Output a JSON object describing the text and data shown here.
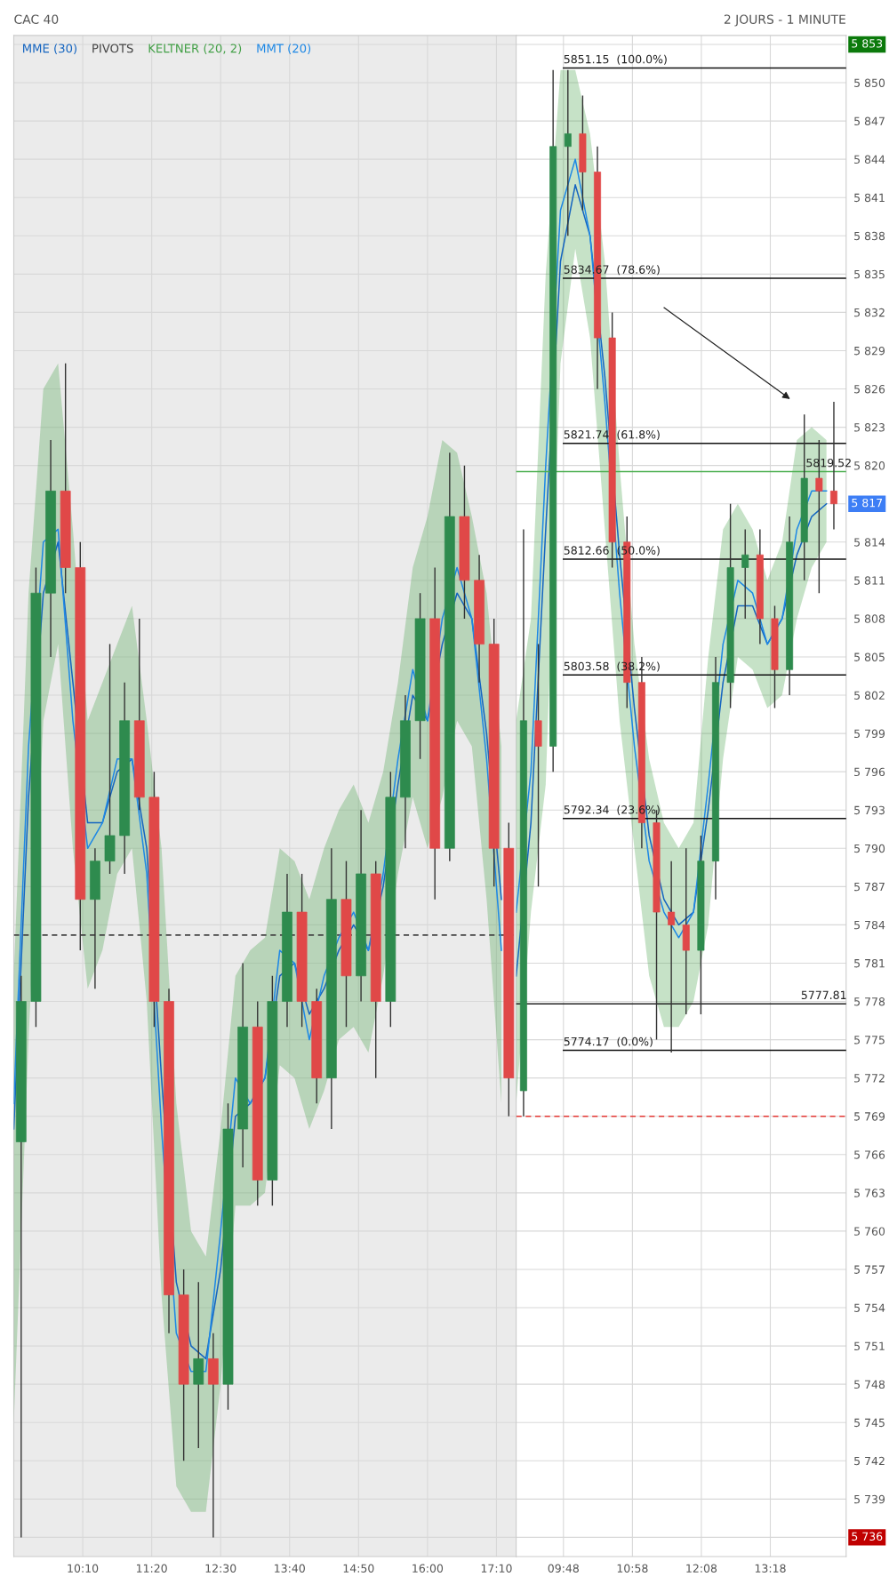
{
  "chart_data": [
    {
      "type": "candlestick",
      "title": "CAC 40",
      "xlim": [
        9,
        17.5
      ],
      "ylim": [
        5734.5,
        5853.7
      ],
      "tick_labels": "x",
      "xticks": [
        {
          "value": 10.1667,
          "label": "10:10"
        },
        {
          "value": 11.3333,
          "label": "11:20"
        },
        {
          "value": 12.5,
          "label": "12:30"
        },
        {
          "value": 13.6667,
          "label": "13:40"
        },
        {
          "value": 14.8333,
          "label": "14:50"
        },
        {
          "value": 16,
          "label": "16:00"
        },
        {
          "value": 17.1667,
          "label": "17:10"
        }
      ],
      "yticks": [
        5736,
        5739,
        5742,
        5745,
        5748,
        5751,
        5754,
        5757,
        5760,
        5763,
        5766,
        5769,
        5772,
        5775,
        5778,
        5781,
        5784,
        5787,
        5790,
        5793,
        5796,
        5799,
        5802,
        5805,
        5808,
        5811,
        5814,
        5817,
        5820,
        5823,
        5826,
        5829,
        5832,
        5835,
        5838,
        5841,
        5844,
        5847,
        5850,
        5853
      ],
      "grid": true,
      "legend": "top left",
      "bands": [
        {
          "axis": "x",
          "from": 9,
          "to": 17.5,
          "color": "#ebebeb"
        }
      ],
      "series": [
        {
          "x": [
            9.125,
            9.375,
            9.625,
            9.875,
            10.125,
            10.375,
            10.625,
            10.875,
            11.125,
            11.375,
            11.625,
            11.875,
            12.125,
            12.375,
            12.625,
            12.875,
            13.125,
            13.375,
            13.625,
            13.875,
            14.125,
            14.375,
            14.625,
            14.875,
            15.125,
            15.375,
            15.625,
            15.875,
            16.125,
            16.375,
            16.625,
            16.875,
            17.125,
            17.375
          ],
          "ohlc": [
            [
              5767,
              5780,
              5736,
              5778
            ],
            [
              5778,
              5812,
              5776,
              5810
            ],
            [
              5810,
              5822,
              5805,
              5818
            ],
            [
              5818,
              5828,
              5810,
              5812
            ],
            [
              5812,
              5814,
              5782,
              5786
            ],
            [
              5786,
              5790,
              5779,
              5789
            ],
            [
              5789,
              5806,
              5788,
              5791
            ],
            [
              5791,
              5803,
              5788,
              5800
            ],
            [
              5800,
              5808,
              5793,
              5794
            ],
            [
              5794,
              5796,
              5776,
              5778
            ],
            [
              5778,
              5779,
              5752,
              5755
            ],
            [
              5755,
              5757,
              5742,
              5748
            ],
            [
              5748,
              5756,
              5743,
              5750
            ],
            [
              5750,
              5752,
              5736,
              5748
            ],
            [
              5748,
              5770,
              5746,
              5768
            ],
            [
              5768,
              5781,
              5765,
              5776
            ],
            [
              5776,
              5778,
              5762,
              5764
            ],
            [
              5764,
              5780,
              5762,
              5778
            ],
            [
              5778,
              5788,
              5776,
              5785
            ],
            [
              5785,
              5788,
              5776,
              5778
            ],
            [
              5778,
              5779,
              5770,
              5772
            ],
            [
              5772,
              5790,
              5768,
              5786
            ],
            [
              5786,
              5789,
              5776,
              5780
            ],
            [
              5780,
              5793,
              5778,
              5788
            ],
            [
              5788,
              5789,
              5772,
              5778
            ],
            [
              5778,
              5796,
              5776,
              5794
            ],
            [
              5794,
              5802,
              5790,
              5800
            ],
            [
              5800,
              5810,
              5797,
              5808
            ],
            [
              5808,
              5812,
              5786,
              5790
            ],
            [
              5790,
              5821,
              5789,
              5816
            ],
            [
              5816,
              5820,
              5808,
              5811
            ],
            [
              5811,
              5813,
              5803,
              5806
            ],
            [
              5806,
              5808,
              5787,
              5790
            ],
            [
              5790,
              5792,
              5769,
              5772
            ]
          ],
          "colors": [
            "#2e8b4e",
            "#2e8b4e",
            "#2e8b4e",
            "#e04848",
            "#e04848",
            "#2e8b4e",
            "#2e8b4e",
            "#2e8b4e",
            "#e04848",
            "#e04848",
            "#e04848",
            "#e04848",
            "#2e8b4e",
            "#e04848",
            "#2e8b4e",
            "#2e8b4e",
            "#e04848",
            "#2e8b4e",
            "#2e8b4e",
            "#e04848",
            "#e04848",
            "#2e8b4e",
            "#e04848",
            "#2e8b4e",
            "#e04848",
            "#2e8b4e",
            "#2e8b4e",
            "#2e8b4e",
            "#e04848",
            "#2e8b4e",
            "#e04848",
            "#e04848",
            "#e04848",
            "#e04848"
          ]
        },
        {
          "type": "line",
          "name": "MME (30)",
          "color": "#1565c0",
          "x": [
            9.0,
            9.25,
            9.5,
            9.75,
            10.0,
            10.25,
            10.5,
            10.75,
            11.0,
            11.25,
            11.5,
            11.75,
            12.0,
            12.25,
            12.5,
            12.75,
            13.0,
            13.25,
            13.5,
            13.75,
            14.0,
            14.25,
            14.5,
            14.75,
            15.0,
            15.25,
            15.5,
            15.75,
            16.0,
            16.25,
            16.5,
            16.75,
            17.0,
            17.25
          ],
          "values": [
            5768,
            5794,
            5810,
            5814,
            5803,
            5792,
            5792,
            5796,
            5797,
            5790,
            5772,
            5756,
            5751,
            5750,
            5757,
            5769,
            5770,
            5772,
            5780,
            5781,
            5777,
            5779,
            5782,
            5784,
            5782,
            5787,
            5795,
            5802,
            5800,
            5806,
            5810,
            5808,
            5799,
            5786
          ]
        },
        {
          "type": "line",
          "name": "PIVOTS",
          "color": "#444444",
          "line_style": "dashed",
          "x": [
            9,
            17.5
          ],
          "values": [
            5783.2,
            5783.2
          ]
        },
        {
          "type": "line",
          "name": "KELTNER (20, 2)",
          "color": "#43a047",
          "x": [
            9.0,
            9.25,
            9.5,
            9.75,
            10.0,
            10.25,
            10.5,
            10.75,
            11.0,
            11.25,
            11.5,
            11.75,
            12.0,
            12.25,
            12.5,
            12.75,
            13.0,
            13.25,
            13.5,
            13.75,
            14.0,
            14.25,
            14.5,
            14.75,
            15.0,
            15.25,
            15.5,
            15.75,
            16.0,
            16.25,
            16.5,
            16.75,
            17.0,
            17.25
          ],
          "values": [
            null,
            null,
            null,
            null,
            null,
            null,
            null,
            null,
            null,
            null,
            null,
            null,
            null,
            null,
            null,
            null,
            null,
            null,
            null,
            null,
            null,
            null,
            null,
            null,
            null,
            null,
            null,
            null,
            null,
            null,
            null,
            null,
            null,
            null
          ],
          "upper": [
            5780,
            5810,
            5826,
            5828,
            5815,
            5800,
            5803,
            5806,
            5809,
            5800,
            5790,
            5770,
            5760,
            5758,
            5768,
            5780,
            5782,
            5783,
            5790,
            5789,
            5786,
            5790,
            5793,
            5795,
            5792,
            5796,
            5803,
            5812,
            5816,
            5822,
            5821,
            5816,
            5810,
            5798
          ],
          "lower": [
            5745,
            5775,
            5800,
            5806,
            5790,
            5779,
            5782,
            5788,
            5790,
            5778,
            5755,
            5740,
            5738,
            5738,
            5748,
            5762,
            5762,
            5763,
            5773,
            5772,
            5768,
            5771,
            5775,
            5776,
            5774,
            5780,
            5788,
            5794,
            5790,
            5794,
            5800,
            5798,
            5786,
            5770
          ]
        },
        {
          "type": "line",
          "name": "MMT (20)",
          "color": "#1e88e5",
          "x": [
            9.0,
            9.25,
            9.5,
            9.75,
            10.0,
            10.25,
            10.5,
            10.75,
            11.0,
            11.25,
            11.5,
            11.75,
            12.0,
            12.25,
            12.5,
            12.75,
            13.0,
            13.25,
            13.5,
            13.75,
            14.0,
            14.25,
            14.5,
            14.75,
            15.0,
            15.25,
            15.5,
            15.75,
            16.0,
            16.25,
            16.5,
            16.75,
            17.0,
            17.25
          ],
          "values": [
            5770,
            5798,
            5814,
            5815,
            5800,
            5790,
            5792,
            5797,
            5797,
            5788,
            5768,
            5752,
            5749,
            5749,
            5760,
            5772,
            5770,
            5772,
            5782,
            5781,
            5775,
            5780,
            5783,
            5785,
            5782,
            5788,
            5797,
            5804,
            5800,
            5808,
            5812,
            5808,
            5797,
            5782
          ]
        }
      ]
    },
    {
      "type": "candlestick",
      "subtitle": "2 JOURS - 1 MINUTE",
      "xlim": [
        9,
        14.583
      ],
      "ylim": [
        5734.5,
        5853.7
      ],
      "xticks": [
        {
          "value": 9.8,
          "label": "09:48"
        },
        {
          "value": 10.9667,
          "label": "10:58"
        },
        {
          "value": 12.1333,
          "label": "12:08"
        },
        {
          "value": 13.3,
          "label": "13:18"
        }
      ],
      "yticks": [
        {
          "value": 5736,
          "label": null
        },
        {
          "value": 5739,
          "label": "5 739"
        },
        {
          "value": 5742,
          "label": "5 742"
        },
        {
          "value": 5745,
          "label": "5 745"
        },
        {
          "value": 5748,
          "label": "5 748"
        },
        {
          "value": 5751,
          "label": "5 751"
        },
        {
          "value": 5754,
          "label": "5 754"
        },
        {
          "value": 5757,
          "label": "5 757"
        },
        {
          "value": 5760,
          "label": "5 760"
        },
        {
          "value": 5763,
          "label": "5 763"
        },
        {
          "value": 5766,
          "label": "5 766"
        },
        {
          "value": 5769,
          "label": "5 769"
        },
        {
          "value": 5772,
          "label": "5 772"
        },
        {
          "value": 5775,
          "label": "5 775"
        },
        {
          "value": 5778,
          "label": "5 778"
        },
        {
          "value": 5781,
          "label": "5 781"
        },
        {
          "value": 5784,
          "label": "5 784"
        },
        {
          "value": 5787,
          "label": "5 787"
        },
        {
          "value": 5790,
          "label": "5 790"
        },
        {
          "value": 5793,
          "label": "5 793"
        },
        {
          "value": 5796,
          "label": "5 796"
        },
        {
          "value": 5799,
          "label": "5 799"
        },
        {
          "value": 5802,
          "label": "5 802"
        },
        {
          "value": 5805,
          "label": "5 805"
        },
        {
          "value": 5808,
          "label": "5 808"
        },
        {
          "value": 5811,
          "label": "5 811"
        },
        {
          "value": 5814,
          "label": "5 814"
        },
        {
          "value": 5817,
          "label": null
        },
        {
          "value": 5820,
          "label": "5 820"
        },
        {
          "value": 5823,
          "label": "5 823"
        },
        {
          "value": 5826,
          "label": "5 826"
        },
        {
          "value": 5829,
          "label": "5 829"
        },
        {
          "value": 5832,
          "label": "5 832"
        },
        {
          "value": 5835,
          "label": "5 835"
        },
        {
          "value": 5838,
          "label": "5 838"
        },
        {
          "value": 5841,
          "label": "5 841"
        },
        {
          "value": 5844,
          "label": "5 844"
        },
        {
          "value": 5847,
          "label": "5 847"
        },
        {
          "value": 5850,
          "label": "5 850"
        },
        {
          "value": 5853,
          "label": null
        }
      ],
      "grid": true,
      "series": [
        {
          "x": [
            9.125,
            9.375,
            9.625,
            9.875,
            10.125,
            10.375,
            10.625,
            10.875,
            11.125,
            11.375,
            11.625,
            11.875,
            12.125,
            12.375,
            12.625,
            12.875,
            13.125,
            13.375,
            13.625,
            13.875,
            14.125,
            14.375
          ],
          "ohlc": [
            [
              5771,
              5815,
              5769,
              5800
            ],
            [
              5800,
              5806,
              5787,
              5798
            ],
            [
              5798,
              5851,
              5796,
              5845
            ],
            [
              5845,
              5851,
              5838,
              5846
            ],
            [
              5846,
              5849,
              5840,
              5843
            ],
            [
              5843,
              5845,
              5826,
              5830
            ],
            [
              5830,
              5832,
              5812,
              5814
            ],
            [
              5814,
              5816,
              5801,
              5803
            ],
            [
              5803,
              5805,
              5790,
              5792
            ],
            [
              5792,
              5793,
              5775,
              5785
            ],
            [
              5785,
              5789,
              5774,
              5784
            ],
            [
              5784,
              5790,
              5777,
              5782
            ],
            [
              5782,
              5791,
              5777,
              5789
            ],
            [
              5789,
              5805,
              5786,
              5803
            ],
            [
              5803,
              5817,
              5801,
              5812
            ],
            [
              5812,
              5815,
              5808,
              5813
            ],
            [
              5813,
              5815,
              5806,
              5808
            ],
            [
              5808,
              5809,
              5801,
              5804
            ],
            [
              5804,
              5816,
              5802,
              5814
            ],
            [
              5814,
              5824,
              5811,
              5819
            ],
            [
              5819,
              5822,
              5810,
              5818
            ],
            [
              5818,
              5825,
              5815,
              5817
            ]
          ],
          "colors": [
            "#2e8b4e",
            "#e04848",
            "#2e8b4e",
            "#2e8b4e",
            "#e04848",
            "#e04848",
            "#e04848",
            "#e04848",
            "#e04848",
            "#e04848",
            "#e04848",
            "#e04848",
            "#2e8b4e",
            "#2e8b4e",
            "#2e8b4e",
            "#2e8b4e",
            "#e04848",
            "#e04848",
            "#2e8b4e",
            "#2e8b4e",
            "#e04848",
            "#e04848"
          ]
        },
        {
          "type": "line",
          "color": "#1565c0",
          "x": [
            9.0,
            9.25,
            9.5,
            9.75,
            10.0,
            10.25,
            10.5,
            10.75,
            11.0,
            11.25,
            11.5,
            11.75,
            12.0,
            12.25,
            12.5,
            12.75,
            13.0,
            13.25,
            13.5,
            13.75,
            14.0,
            14.25
          ],
          "values": [
            5780,
            5792,
            5815,
            5836,
            5842,
            5838,
            5827,
            5813,
            5801,
            5791,
            5786,
            5784,
            5785,
            5793,
            5803,
            5809,
            5809,
            5806,
            5808,
            5813,
            5816,
            5817
          ]
        },
        {
          "type": "line",
          "color": "#43a047",
          "x": [
            9.0,
            9.25,
            9.5,
            9.75,
            10.0,
            10.25,
            10.5,
            10.75,
            11.0,
            11.25,
            11.5,
            11.75,
            12.0,
            12.25,
            12.5,
            12.75,
            13.0,
            13.25,
            13.5,
            13.75,
            14.0,
            14.25
          ],
          "values": [
            null,
            null,
            null,
            null,
            null,
            null,
            null,
            null,
            null,
            null,
            null,
            null,
            null,
            null,
            null,
            null,
            null,
            null,
            null,
            null,
            null,
            null
          ],
          "upper": [
            5800,
            5808,
            5835,
            5851,
            5851,
            5846,
            5836,
            5820,
            5806,
            5797,
            5792,
            5790,
            5792,
            5805,
            5815,
            5817,
            5815,
            5811,
            5814,
            5822,
            5823,
            5822
          ],
          "lower": [
            5770,
            5785,
            5795,
            5828,
            5837,
            5830,
            5815,
            5800,
            5790,
            5780,
            5776,
            5776,
            5778,
            5784,
            5797,
            5805,
            5804,
            5801,
            5802,
            5808,
            5812,
            5814
          ]
        },
        {
          "type": "line",
          "color": "#1e88e5",
          "x": [
            9.0,
            9.25,
            9.5,
            9.75,
            10.0,
            10.25,
            10.5,
            10.75,
            11.0,
            11.25,
            11.5,
            11.75,
            12.0,
            12.25,
            12.5,
            12.75,
            13.0,
            13.25,
            13.5,
            13.75,
            14.0,
            14.25
          ],
          "values": [
            5785,
            5796,
            5820,
            5840,
            5844,
            5838,
            5825,
            5810,
            5798,
            5789,
            5785,
            5783,
            5785,
            5795,
            5806,
            5811,
            5810,
            5806,
            5808,
            5815,
            5818,
            5818
          ]
        },
        {
          "type": "line",
          "color": "#e53935",
          "line_style": "dashed",
          "x": [
            9,
            14.583
          ],
          "values": [
            5769,
            5769
          ]
        },
        {
          "type": "line",
          "color": "#4caf50",
          "x": [
            9,
            14.583
          ],
          "values": [
            5819.52,
            5819.52
          ]
        },
        {
          "type": "line",
          "color": "#222222",
          "x": [
            9,
            14.583
          ],
          "values": [
            5777.81,
            5777.81
          ]
        },
        {
          "type": "line",
          "color": "#111111",
          "x": [
            9.8,
            14.583
          ],
          "values": [
            5851.15,
            5851.15
          ]
        },
        {
          "type": "line",
          "color": "#111111",
          "x": [
            9.8,
            14.583
          ],
          "values": [
            5834.67,
            5834.67
          ]
        },
        {
          "type": "line",
          "color": "#111111",
          "x": [
            9.8,
            14.583
          ],
          "values": [
            5821.74,
            5821.74
          ]
        },
        {
          "type": "line",
          "color": "#111111",
          "x": [
            9.8,
            14.583
          ],
          "values": [
            5812.66,
            5812.66
          ]
        },
        {
          "type": "line",
          "color": "#111111",
          "x": [
            9.8,
            14.583
          ],
          "values": [
            5803.58,
            5803.58
          ]
        },
        {
          "type": "line",
          "color": "#111111",
          "x": [
            9.8,
            14.583
          ],
          "values": [
            5792.34,
            5792.34
          ]
        },
        {
          "type": "line",
          "color": "#111111",
          "x": [
            9.8,
            14.583
          ],
          "values": [
            5774.17,
            5774.17
          ]
        }
      ],
      "annotations": [
        {
          "text": "5851.15  (100.0%)",
          "x": 9.8,
          "y": 5851.15
        },
        {
          "text": "5834.67  (78.6%)",
          "x": 9.8,
          "y": 5834.67
        },
        {
          "text": "5821.74  (61.8%)",
          "x": 9.8,
          "y": 5821.74
        },
        {
          "text": "5812.66  (50.0%)",
          "x": 9.8,
          "y": 5812.66
        },
        {
          "text": "5803.58  (38.2%)",
          "x": 9.8,
          "y": 5803.58
        },
        {
          "text": "5792.34  (23.6%)",
          "x": 9.8,
          "y": 5792.34
        },
        {
          "text": "5774.17  (0.0%)",
          "x": 9.8,
          "y": 5774.17
        },
        {
          "text": "5777.81",
          "x": 13.817,
          "y": 5777.81
        },
        {
          "text": "5819.52",
          "x": 13.9,
          "y": 5819.52
        },
        {
          "text": "5 853",
          "y": 5853
        },
        {
          "text": "5 817",
          "y": 5817
        },
        {
          "text": "5 736",
          "y": 5736
        }
      ]
    }
  ]
}
